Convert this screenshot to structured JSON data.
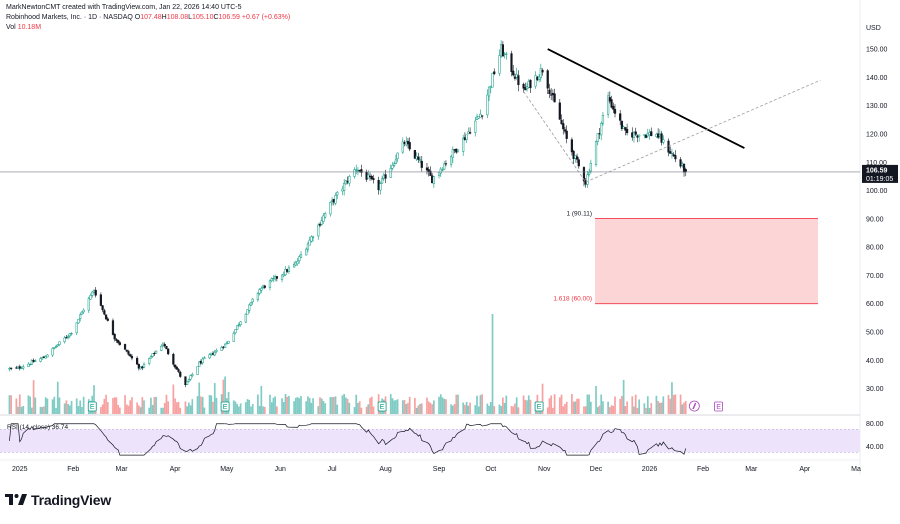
{
  "header": {
    "credit": "MarkNewtonCMT created with TradingView.com, Jan 22, 2026 14:40 UTC-5",
    "symbol": "Robinhood Markets, Inc. · 1D · NASDAQ",
    "ohlc": [
      {
        "key": "O",
        "val": "107.48"
      },
      {
        "key": "H",
        "val": "108.08"
      },
      {
        "key": "L",
        "val": "105.10"
      },
      {
        "key": "C",
        "val": "106.59"
      }
    ],
    "change": "+0.67 (+0.63%)",
    "volume_label": "Vol",
    "volume_value": "10.18M"
  },
  "price_scale": {
    "currency": "USD",
    "ticks": [
      "150.00",
      "140.00",
      "130.00",
      "120.00",
      "110.00",
      "100.00",
      "90.00",
      "80.00",
      "70.00",
      "60.00",
      "50.00",
      "40.00",
      "30.00"
    ],
    "last_price": "106.59",
    "countdown": "01:19:05"
  },
  "rsi": {
    "label": "RSI (14, close)",
    "value": "36.74",
    "ticks": [
      "80.00",
      "40.00"
    ],
    "band": [
      30,
      70
    ]
  },
  "time_axis": [
    "2025",
    "Feb",
    "Mar",
    "Apr",
    "May",
    "Jun",
    "Jul",
    "Aug",
    "Sep",
    "Oct",
    "Nov",
    "Dec",
    "2026",
    "Feb",
    "Mar",
    "Apr",
    "Ma"
  ],
  "fib": {
    "upper_label": "1 (90.11)",
    "lower_label": "1.618 (60.00)",
    "upper": 90.11,
    "lower": 60.0,
    "fill": "#fcd6d6",
    "line": "#f23645"
  },
  "colors": {
    "up": "#089981",
    "down": "#131722",
    "vol_up": "#80cbc4",
    "vol_down": "#f7a1a1",
    "rsi_line": "#131722",
    "rsi_band": "#ede3fb",
    "trend": "#000000",
    "dashed": "#9e9e9e"
  },
  "markers": {
    "earnings": "E",
    "dividend_icon": "dividend-icon"
  },
  "brand": {
    "name": "TradingView"
  },
  "chart_data": {
    "type": "candlestick",
    "title": "Robinhood Markets, Inc. · 1D · NASDAQ",
    "xlabel": "",
    "ylabel": "USD",
    "ylim": [
      21,
      161
    ],
    "x": [
      "2024-12",
      "2025-01",
      "2025-02",
      "2025-03",
      "2025-04",
      "2025-05",
      "2025-06",
      "2025-07",
      "2025-08",
      "2025-09",
      "2025-10",
      "2025-11",
      "2025-12",
      "2026-01"
    ],
    "close_path": [
      [
        "2024-12-30",
        37
      ],
      [
        "2025-01-15",
        41
      ],
      [
        "2025-01-31",
        50
      ],
      [
        "2025-02-13",
        65
      ],
      [
        "2025-02-25",
        48
      ],
      [
        "2025-03-12",
        37
      ],
      [
        "2025-03-25",
        46
      ],
      [
        "2025-04-07",
        31
      ],
      [
        "2025-04-15",
        39
      ],
      [
        "2025-05-01",
        46
      ],
      [
        "2025-05-20",
        65
      ],
      [
        "2025-06-10",
        74
      ],
      [
        "2025-06-30",
        95
      ],
      [
        "2025-07-15",
        108
      ],
      [
        "2025-07-28",
        101
      ],
      [
        "2025-08-12",
        117
      ],
      [
        "2025-08-28",
        104
      ],
      [
        "2025-09-15",
        118
      ],
      [
        "2025-09-26",
        128
      ],
      [
        "2025-10-07",
        150
      ],
      [
        "2025-10-20",
        135
      ],
      [
        "2025-10-31",
        143
      ],
      [
        "2025-11-14",
        118
      ],
      [
        "2025-11-25",
        103
      ],
      [
        "2025-12-08",
        133
      ],
      [
        "2025-12-18",
        120
      ],
      [
        "2026-01-05",
        120
      ],
      [
        "2026-01-22",
        106.59
      ]
    ],
    "last_close": 106.59,
    "annotations": [
      {
        "type": "trendline",
        "from": [
          "2025-11-03",
          150
        ],
        "to": [
          "2026-02-25",
          115
        ]
      },
      {
        "type": "dashed",
        "points": [
          [
            "2025-10-20",
            135
          ],
          [
            "2025-11-25",
            103
          ],
          [
            "2026-04-10",
            139
          ]
        ]
      },
      {
        "type": "fib_zone",
        "from": 90.11,
        "to": 60.0,
        "labels": [
          "1 (90.11)",
          "1.618 (60.00)"
        ]
      }
    ],
    "rsi": {
      "type": "line",
      "range": [
        20,
        90
      ],
      "last": 36.74
    },
    "grid": false,
    "legend": "top-left"
  }
}
